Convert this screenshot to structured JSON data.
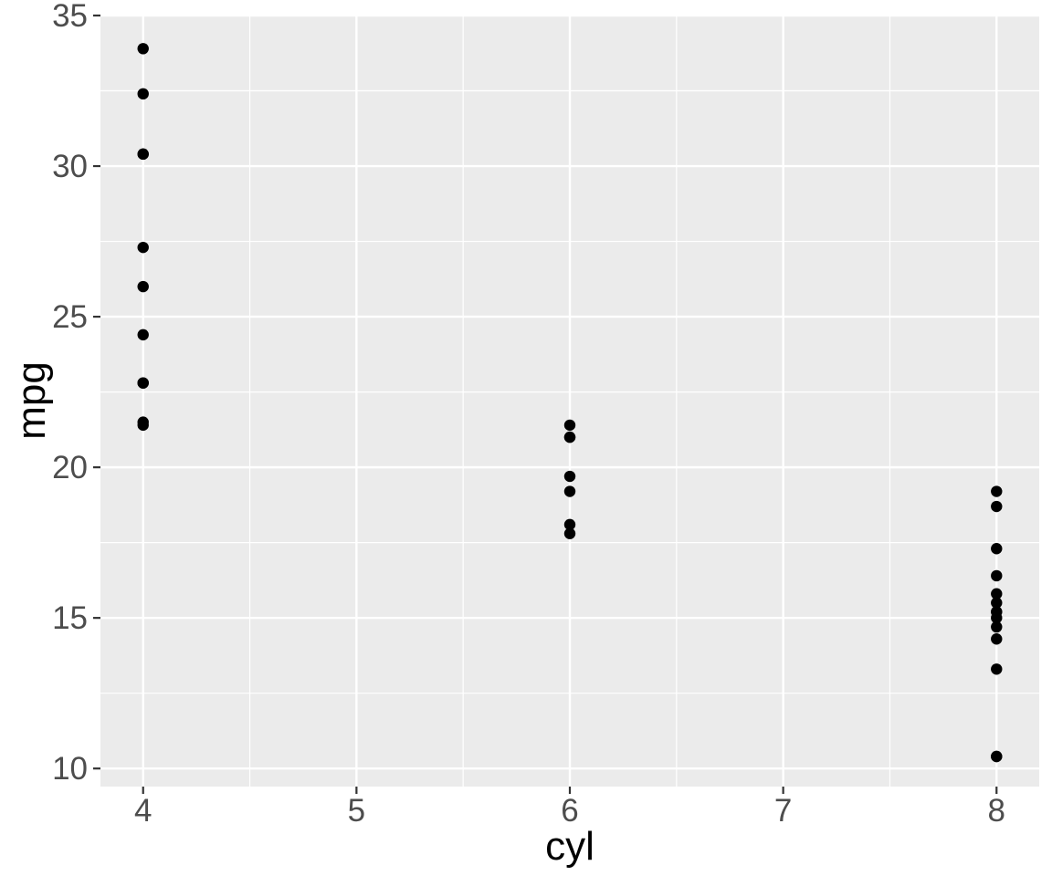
{
  "chart_data": {
    "type": "scatter",
    "xlabel": "cyl",
    "ylabel": "mpg",
    "xlim": [
      3.8,
      8.2
    ],
    "ylim": [
      9.4,
      35.0
    ],
    "x_ticks": [
      4,
      5,
      6,
      7,
      8
    ],
    "x_tick_labels": [
      "4",
      "5",
      "6",
      "7",
      "8"
    ],
    "y_ticks": [
      10,
      15,
      20,
      25,
      30,
      35
    ],
    "y_tick_labels": [
      "10",
      "15",
      "20",
      "25",
      "30",
      "35"
    ],
    "grid": true,
    "legend": "none",
    "colors": {
      "panel_background": "#ebebeb",
      "grid_line": "#ffffff",
      "point": "#000000",
      "tick_label": "#4d4d4d",
      "axis_title": "#000000"
    },
    "points": [
      {
        "x": 4,
        "y": 33.9
      },
      {
        "x": 4,
        "y": 32.4
      },
      {
        "x": 4,
        "y": 30.4
      },
      {
        "x": 4,
        "y": 30.4
      },
      {
        "x": 4,
        "y": 27.3
      },
      {
        "x": 4,
        "y": 26.0
      },
      {
        "x": 4,
        "y": 24.4
      },
      {
        "x": 4,
        "y": 22.8
      },
      {
        "x": 4,
        "y": 22.8
      },
      {
        "x": 4,
        "y": 21.5
      },
      {
        "x": 4,
        "y": 21.4
      },
      {
        "x": 6,
        "y": 21.4
      },
      {
        "x": 6,
        "y": 21.0
      },
      {
        "x": 6,
        "y": 21.0
      },
      {
        "x": 6,
        "y": 19.7
      },
      {
        "x": 6,
        "y": 19.2
      },
      {
        "x": 6,
        "y": 18.1
      },
      {
        "x": 6,
        "y": 17.8
      },
      {
        "x": 8,
        "y": 19.2
      },
      {
        "x": 8,
        "y": 18.7
      },
      {
        "x": 8,
        "y": 17.3
      },
      {
        "x": 8,
        "y": 16.4
      },
      {
        "x": 8,
        "y": 15.8
      },
      {
        "x": 8,
        "y": 15.5
      },
      {
        "x": 8,
        "y": 15.2
      },
      {
        "x": 8,
        "y": 15.2
      },
      {
        "x": 8,
        "y": 15.0
      },
      {
        "x": 8,
        "y": 14.7
      },
      {
        "x": 8,
        "y": 14.3
      },
      {
        "x": 8,
        "y": 13.3
      },
      {
        "x": 8,
        "y": 10.4
      },
      {
        "x": 8,
        "y": 10.4
      }
    ]
  }
}
